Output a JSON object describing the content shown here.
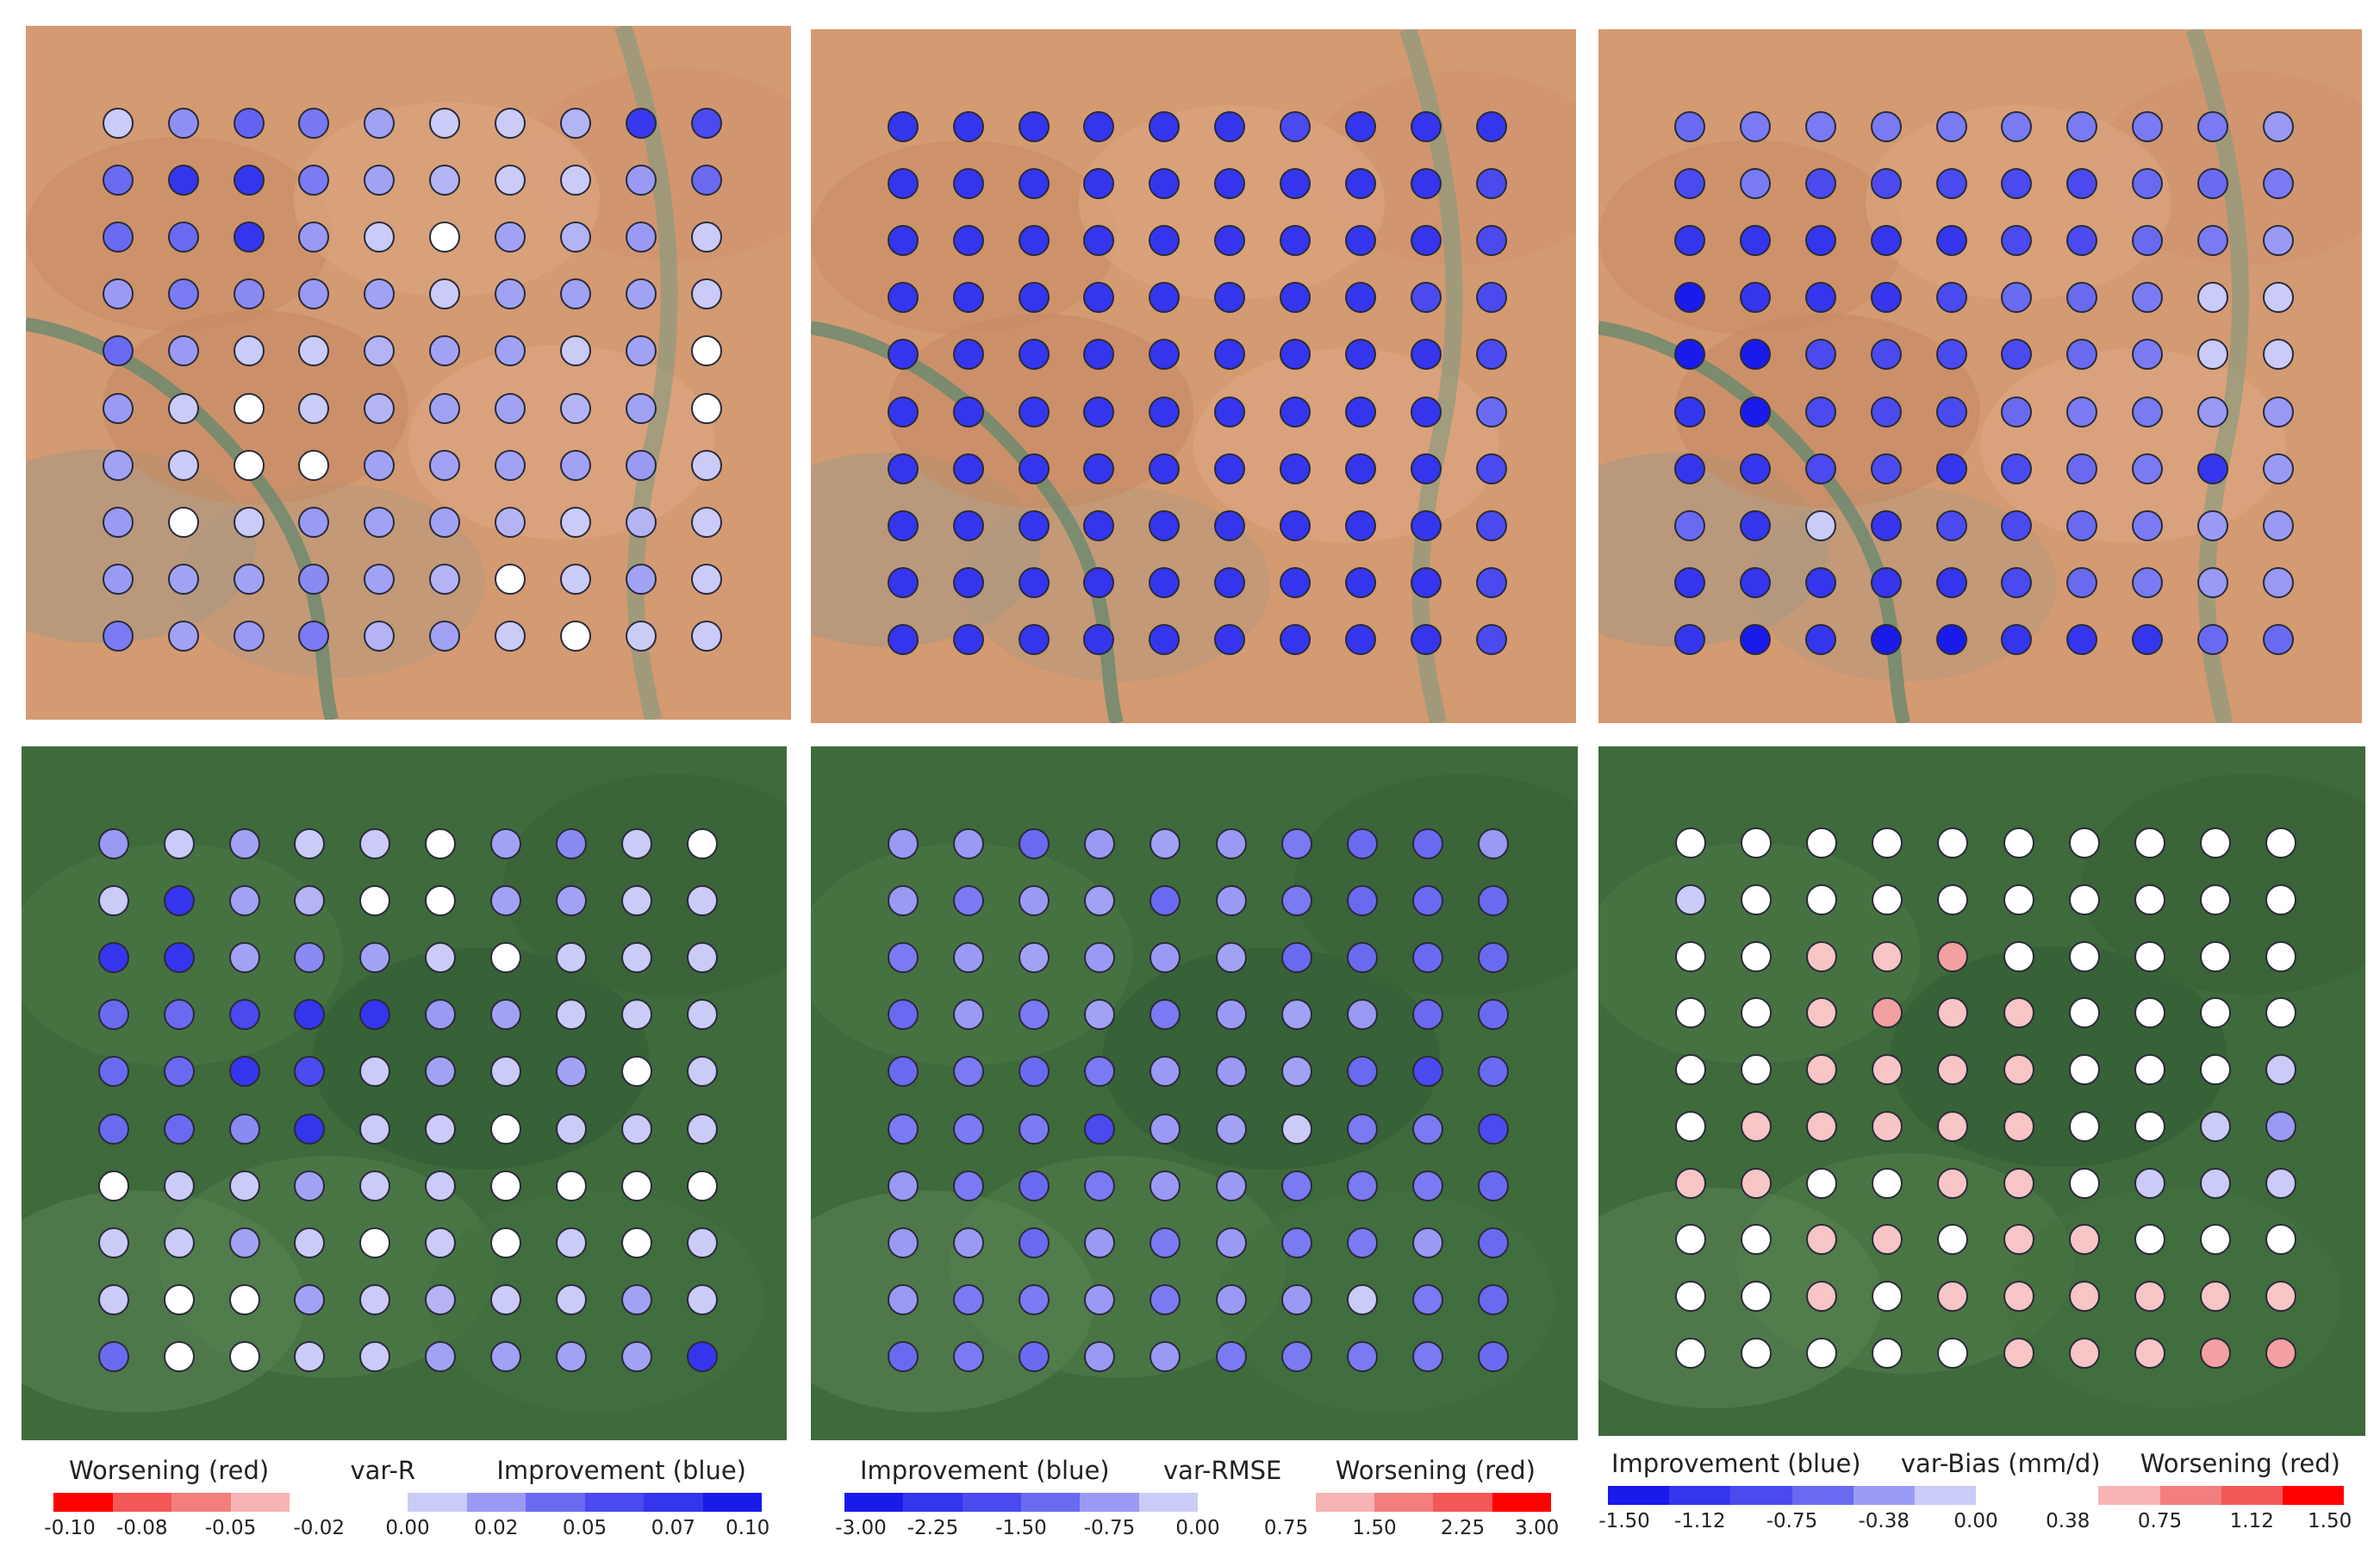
{
  "panels": [
    {
      "terrain": "arid",
      "grid": [
        [
          "#cbcbf7",
          "#8f8ff3",
          "#6363f1",
          "#7878f2",
          "#a2a2f5",
          "#cbcbf7",
          "#cbcbf7",
          "#b4b4f5",
          "#3838ee",
          "#4a4aef"
        ],
        [
          "#6a6af1",
          "#3535ee",
          "#3535ee",
          "#7a7af2",
          "#a2a2f5",
          "#b4b4f5",
          "#cbcbf7",
          "#cbcbf7",
          "#9a9af4",
          "#6a6af1"
        ],
        [
          "#6a6af1",
          "#6a6af1",
          "#3535ee",
          "#9a9af4",
          "#cbcbf7",
          "#ffffff",
          "#a2a2f5",
          "#b4b4f5",
          "#9a9af4",
          "#cbcbf7"
        ],
        [
          "#9a9af4",
          "#7a7af2",
          "#8a8af3",
          "#9a9af4",
          "#a2a2f5",
          "#cbcbf7",
          "#a2a2f5",
          "#a2a2f5",
          "#a2a2f5",
          "#cbcbf7"
        ],
        [
          "#6a6af1",
          "#9a9af4",
          "#cbcbf7",
          "#cbcbf7",
          "#b4b4f5",
          "#a2a2f5",
          "#a2a2f5",
          "#cbcbf7",
          "#a2a2f5",
          "#ffffff"
        ],
        [
          "#9a9af4",
          "#cbcbf7",
          "#ffffff",
          "#cbcbf7",
          "#b4b4f5",
          "#a2a2f5",
          "#a2a2f5",
          "#b4b4f5",
          "#a2a2f5",
          "#ffffff"
        ],
        [
          "#a2a2f5",
          "#cbcbf7",
          "#ffffff",
          "#ffffff",
          "#a2a2f5",
          "#a2a2f5",
          "#a2a2f5",
          "#a2a2f5",
          "#9a9af4",
          "#cbcbf7"
        ],
        [
          "#9a9af4",
          "#ffffff",
          "#cbcbf7",
          "#9a9af4",
          "#a2a2f5",
          "#a2a2f5",
          "#b4b4f5",
          "#cbcbf7",
          "#b4b4f5",
          "#cbcbf7"
        ],
        [
          "#9a9af4",
          "#a2a2f5",
          "#a2a2f5",
          "#8a8af3",
          "#a2a2f5",
          "#b4b4f5",
          "#ffffff",
          "#cbcbf7",
          "#a2a2f5",
          "#cbcbf7"
        ],
        [
          "#7a7af2",
          "#a2a2f5",
          "#9a9af4",
          "#7a7af2",
          "#b4b4f5",
          "#a2a2f5",
          "#cbcbf7",
          "#ffffff",
          "#cbcbf7",
          "#cbcbf7"
        ]
      ]
    },
    {
      "terrain": "arid",
      "grid": [
        [
          "#3535ee",
          "#3535ee",
          "#3535ee",
          "#3535ee",
          "#3535ee",
          "#3535ee",
          "#4a4aef",
          "#3535ee",
          "#3535ee",
          "#3535ee"
        ],
        [
          "#3535ee",
          "#3535ee",
          "#3535ee",
          "#3535ee",
          "#3535ee",
          "#3535ee",
          "#3535ee",
          "#3535ee",
          "#3535ee",
          "#4a4aef"
        ],
        [
          "#3535ee",
          "#3535ee",
          "#3535ee",
          "#3535ee",
          "#3535ee",
          "#3535ee",
          "#3535ee",
          "#3535ee",
          "#3535ee",
          "#4a4aef"
        ],
        [
          "#3535ee",
          "#3535ee",
          "#3535ee",
          "#3535ee",
          "#3535ee",
          "#3535ee",
          "#3535ee",
          "#3535ee",
          "#4a4aef",
          "#4a4aef"
        ],
        [
          "#3535ee",
          "#3535ee",
          "#3535ee",
          "#3535ee",
          "#3535ee",
          "#3535ee",
          "#3535ee",
          "#3535ee",
          "#3535ee",
          "#4a4aef"
        ],
        [
          "#3535ee",
          "#3535ee",
          "#3535ee",
          "#3535ee",
          "#3535ee",
          "#3535ee",
          "#3535ee",
          "#3535ee",
          "#3535ee",
          "#6a6af1"
        ],
        [
          "#3535ee",
          "#3535ee",
          "#3535ee",
          "#3535ee",
          "#3535ee",
          "#3535ee",
          "#3535ee",
          "#3535ee",
          "#3535ee",
          "#4a4aef"
        ],
        [
          "#3535ee",
          "#3535ee",
          "#3535ee",
          "#3535ee",
          "#3535ee",
          "#3535ee",
          "#3535ee",
          "#3535ee",
          "#3535ee",
          "#4a4aef"
        ],
        [
          "#3535ee",
          "#3535ee",
          "#3535ee",
          "#3535ee",
          "#3535ee",
          "#3535ee",
          "#3535ee",
          "#3535ee",
          "#3535ee",
          "#4a4aef"
        ],
        [
          "#3535ee",
          "#3535ee",
          "#3535ee",
          "#3535ee",
          "#3535ee",
          "#3535ee",
          "#3535ee",
          "#3535ee",
          "#3535ee",
          "#4a4aef"
        ]
      ]
    },
    {
      "terrain": "arid",
      "grid": [
        [
          "#6a6af1",
          "#7a7af2",
          "#7a7af2",
          "#7a7af2",
          "#7a7af2",
          "#7a7af2",
          "#7a7af2",
          "#7a7af2",
          "#7a7af2",
          "#9a9af4"
        ],
        [
          "#4a4aef",
          "#7a7af2",
          "#4a4aef",
          "#4a4aef",
          "#4a4aef",
          "#4a4aef",
          "#4a4aef",
          "#6a6af1",
          "#6a6af1",
          "#7a7af2"
        ],
        [
          "#3535ee",
          "#3535ee",
          "#3535ee",
          "#3535ee",
          "#3535ee",
          "#4a4aef",
          "#4a4aef",
          "#6a6af1",
          "#7a7af2",
          "#9a9af4"
        ],
        [
          "#1a1aeb",
          "#3535ee",
          "#3535ee",
          "#3535ee",
          "#4a4aef",
          "#6a6af1",
          "#6a6af1",
          "#7a7af2",
          "#cbcbf7",
          "#cbcbf7"
        ],
        [
          "#1a1aeb",
          "#1a1aeb",
          "#4a4aef",
          "#4a4aef",
          "#4a4aef",
          "#4a4aef",
          "#6a6af1",
          "#7a7af2",
          "#cbcbf7",
          "#cbcbf7"
        ],
        [
          "#3535ee",
          "#1a1aeb",
          "#4a4aef",
          "#4a4aef",
          "#4a4aef",
          "#6a6af1",
          "#7a7af2",
          "#7a7af2",
          "#9a9af4",
          "#9a9af4"
        ],
        [
          "#3535ee",
          "#3535ee",
          "#4a4aef",
          "#4a4aef",
          "#3535ee",
          "#4a4aef",
          "#6a6af1",
          "#7a7af2",
          "#3535ee",
          "#9a9af4"
        ],
        [
          "#6a6af1",
          "#3535ee",
          "#cbcbf7",
          "#3535ee",
          "#4a4aef",
          "#4a4aef",
          "#6a6af1",
          "#7a7af2",
          "#9a9af4",
          "#9a9af4"
        ],
        [
          "#3535ee",
          "#3535ee",
          "#3535ee",
          "#3535ee",
          "#3535ee",
          "#4a4aef",
          "#6a6af1",
          "#7a7af2",
          "#9a9af4",
          "#9a9af4"
        ],
        [
          "#3535ee",
          "#1a1aeb",
          "#3535ee",
          "#1a1aeb",
          "#1a1aeb",
          "#3535ee",
          "#3535ee",
          "#3535ee",
          "#6a6af1",
          "#6a6af1"
        ]
      ]
    },
    {
      "terrain": "green",
      "grid": [
        [
          "#9a9af4",
          "#cbcbf7",
          "#a2a2f5",
          "#cbcbf7",
          "#cbcbf7",
          "#ffffff",
          "#a2a2f5",
          "#8a8af3",
          "#cbcbf7",
          "#ffffff"
        ],
        [
          "#cbcbf7",
          "#3535ee",
          "#a2a2f5",
          "#b4b4f5",
          "#ffffff",
          "#ffffff",
          "#a2a2f5",
          "#a2a2f5",
          "#cbcbf7",
          "#cbcbf7"
        ],
        [
          "#3535ee",
          "#3535ee",
          "#a2a2f5",
          "#8a8af3",
          "#a2a2f5",
          "#cbcbf7",
          "#ffffff",
          "#cbcbf7",
          "#cbcbf7",
          "#cbcbf7"
        ],
        [
          "#6a6af1",
          "#6a6af1",
          "#4a4aef",
          "#3535ee",
          "#3535ee",
          "#9a9af4",
          "#a2a2f5",
          "#cbcbf7",
          "#cbcbf7",
          "#cbcbf7"
        ],
        [
          "#6a6af1",
          "#6a6af1",
          "#3535ee",
          "#4a4aef",
          "#cbcbf7",
          "#a2a2f5",
          "#cbcbf7",
          "#a2a2f5",
          "#ffffff",
          "#cbcbf7"
        ],
        [
          "#6a6af1",
          "#6a6af1",
          "#8a8af3",
          "#3535ee",
          "#cbcbf7",
          "#cbcbf7",
          "#ffffff",
          "#cbcbf7",
          "#cbcbf7",
          "#cbcbf7"
        ],
        [
          "#ffffff",
          "#cbcbf7",
          "#cbcbf7",
          "#a2a2f5",
          "#cbcbf7",
          "#cbcbf7",
          "#ffffff",
          "#ffffff",
          "#ffffff",
          "#ffffff"
        ],
        [
          "#cbcbf7",
          "#cbcbf7",
          "#a2a2f5",
          "#cbcbf7",
          "#ffffff",
          "#cbcbf7",
          "#ffffff",
          "#cbcbf7",
          "#ffffff",
          "#cbcbf7"
        ],
        [
          "#cbcbf7",
          "#ffffff",
          "#ffffff",
          "#a2a2f5",
          "#cbcbf7",
          "#b4b4f5",
          "#cbcbf7",
          "#cbcbf7",
          "#a2a2f5",
          "#cbcbf7"
        ],
        [
          "#6a6af1",
          "#ffffff",
          "#ffffff",
          "#cbcbf7",
          "#cbcbf7",
          "#a2a2f5",
          "#a2a2f5",
          "#a2a2f5",
          "#a2a2f5",
          "#3535ee"
        ]
      ]
    },
    {
      "terrain": "green",
      "grid": [
        [
          "#9a9af4",
          "#9a9af4",
          "#6a6af1",
          "#9a9af4",
          "#a2a2f5",
          "#9a9af4",
          "#7a7af2",
          "#6a6af1",
          "#6a6af1",
          "#9a9af4"
        ],
        [
          "#9a9af4",
          "#7a7af2",
          "#9a9af4",
          "#a2a2f5",
          "#6a6af1",
          "#9a9af4",
          "#7a7af2",
          "#6a6af1",
          "#6a6af1",
          "#6a6af1"
        ],
        [
          "#7a7af2",
          "#9a9af4",
          "#a2a2f5",
          "#9a9af4",
          "#9a9af4",
          "#a2a2f5",
          "#6a6af1",
          "#6a6af1",
          "#6a6af1",
          "#6a6af1"
        ],
        [
          "#6a6af1",
          "#9a9af4",
          "#7a7af2",
          "#a2a2f5",
          "#7a7af2",
          "#9a9af4",
          "#a2a2f5",
          "#9a9af4",
          "#6a6af1",
          "#6a6af1"
        ],
        [
          "#6a6af1",
          "#7a7af2",
          "#6a6af1",
          "#7a7af2",
          "#9a9af4",
          "#9a9af4",
          "#a2a2f5",
          "#6a6af1",
          "#4a4aef",
          "#6a6af1"
        ],
        [
          "#7a7af2",
          "#7a7af2",
          "#7a7af2",
          "#4a4aef",
          "#9a9af4",
          "#a2a2f5",
          "#cbcbf7",
          "#7a7af2",
          "#7a7af2",
          "#4a4aef"
        ],
        [
          "#9a9af4",
          "#7a7af2",
          "#6a6af1",
          "#7a7af2",
          "#9a9af4",
          "#9a9af4",
          "#7a7af2",
          "#7a7af2",
          "#7a7af2",
          "#6a6af1"
        ],
        [
          "#9a9af4",
          "#9a9af4",
          "#6a6af1",
          "#9a9af4",
          "#7a7af2",
          "#9a9af4",
          "#7a7af2",
          "#7a7af2",
          "#9a9af4",
          "#6a6af1"
        ],
        [
          "#9a9af4",
          "#7a7af2",
          "#7a7af2",
          "#9a9af4",
          "#7a7af2",
          "#9a9af4",
          "#9a9af4",
          "#cbcbf7",
          "#7a7af2",
          "#6a6af1"
        ],
        [
          "#6a6af1",
          "#7a7af2",
          "#6a6af1",
          "#9a9af4",
          "#9a9af4",
          "#7a7af2",
          "#7a7af2",
          "#7a7af2",
          "#7a7af2",
          "#6a6af1"
        ]
      ]
    },
    {
      "terrain": "green",
      "grid": [
        [
          "#ffffff",
          "#ffffff",
          "#ffffff",
          "#ffffff",
          "#ffffff",
          "#ffffff",
          "#ffffff",
          "#ffffff",
          "#ffffff",
          "#ffffff"
        ],
        [
          "#cbcbf7",
          "#ffffff",
          "#ffffff",
          "#ffffff",
          "#ffffff",
          "#ffffff",
          "#ffffff",
          "#ffffff",
          "#ffffff",
          "#ffffff"
        ],
        [
          "#ffffff",
          "#ffffff",
          "#f7c5c5",
          "#f7c5c5",
          "#f2a0a0",
          "#ffffff",
          "#ffffff",
          "#ffffff",
          "#ffffff",
          "#ffffff"
        ],
        [
          "#ffffff",
          "#ffffff",
          "#f7c5c5",
          "#f2a0a0",
          "#f7c5c5",
          "#f7c5c5",
          "#ffffff",
          "#ffffff",
          "#ffffff",
          "#ffffff"
        ],
        [
          "#ffffff",
          "#ffffff",
          "#f7c5c5",
          "#f7c5c5",
          "#f7c5c5",
          "#f7c5c5",
          "#ffffff",
          "#ffffff",
          "#ffffff",
          "#cbcbf7"
        ],
        [
          "#ffffff",
          "#f7c5c5",
          "#f7c5c5",
          "#f7c5c5",
          "#f7c5c5",
          "#f7c5c5",
          "#ffffff",
          "#ffffff",
          "#cbcbf7",
          "#9a9af4"
        ],
        [
          "#f7c5c5",
          "#f7c5c5",
          "#ffffff",
          "#ffffff",
          "#f7c5c5",
          "#f7c5c5",
          "#ffffff",
          "#cbcbf7",
          "#cbcbf7",
          "#cbcbf7"
        ],
        [
          "#ffffff",
          "#ffffff",
          "#f7c5c5",
          "#f7c5c5",
          "#ffffff",
          "#f7c5c5",
          "#f7c5c5",
          "#ffffff",
          "#ffffff",
          "#ffffff"
        ],
        [
          "#ffffff",
          "#ffffff",
          "#f7c5c5",
          "#ffffff",
          "#f7c5c5",
          "#f7c5c5",
          "#f7c5c5",
          "#f7c5c5",
          "#f7c5c5",
          "#f7c5c5"
        ],
        [
          "#ffffff",
          "#ffffff",
          "#ffffff",
          "#ffffff",
          "#ffffff",
          "#f7c5c5",
          "#f7c5c5",
          "#f7c5c5",
          "#f2a0a0",
          "#f2a0a0"
        ]
      ]
    }
  ],
  "colorbars": [
    {
      "left_label": "Worsening (red)",
      "mid_label": "var-R",
      "right_label": "Improvement (blue)",
      "colors": [
        "#ff0000",
        "#f25858",
        "#f27e7e",
        "#f7b4b4",
        "#ffffff",
        "#ffffff",
        "#cbcbf7",
        "#9a9af4",
        "#6a6af1",
        "#4a4aef",
        "#3535ee",
        "#1a1aeb"
      ],
      "ticks": [
        "-0.10",
        "-0.08",
        "-0.05",
        "-0.02",
        "0.00",
        "0.02",
        "0.05",
        "0.07",
        "0.10"
      ]
    },
    {
      "left_label": "Improvement (blue)",
      "mid_label": "var-RMSE",
      "right_label": "Worsening (red)",
      "colors": [
        "#1a1aeb",
        "#3535ee",
        "#4a4aef",
        "#6a6af1",
        "#9a9af4",
        "#cbcbf7",
        "#ffffff",
        "#ffffff",
        "#f7b4b4",
        "#f27e7e",
        "#f25858",
        "#ff0000"
      ],
      "ticks": [
        "-3.00",
        "-2.25",
        "-1.50",
        "-0.75",
        "0.00",
        "0.75",
        "1.50",
        "2.25",
        "3.00"
      ]
    },
    {
      "left_label": "Improvement (blue)",
      "mid_label": "var-Bias (mm/d)",
      "right_label": "Worsening (red)",
      "colors": [
        "#1a1aeb",
        "#3535ee",
        "#4a4aef",
        "#6a6af1",
        "#9a9af4",
        "#cbcbf7",
        "#ffffff",
        "#ffffff",
        "#f7b4b4",
        "#f27e7e",
        "#f25858",
        "#ff0000"
      ],
      "ticks": [
        "-1.50",
        "-1.12",
        "-0.75",
        "-0.38",
        "0.00",
        "0.38",
        "0.75",
        "1.12",
        "1.50"
      ]
    }
  ]
}
